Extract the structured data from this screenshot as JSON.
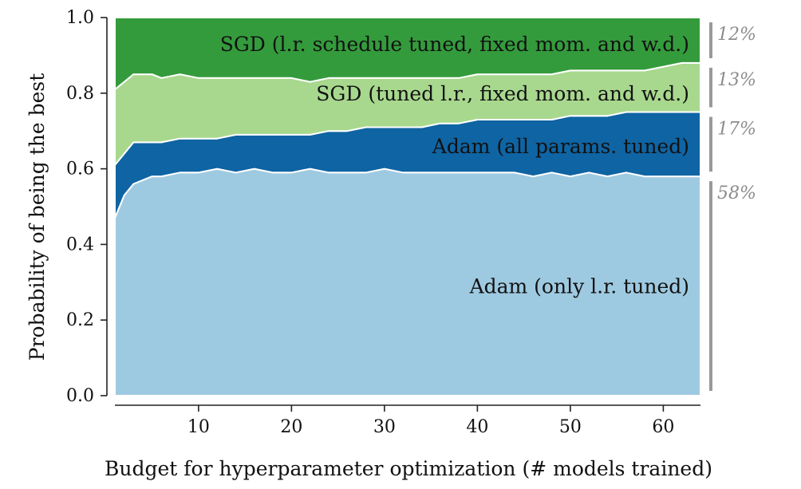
{
  "chart_data": {
    "type": "area",
    "stacked": true,
    "xlabel": "Budget for hyperparameter optimization (# models trained)",
    "ylabel": "Probability of being the best",
    "xlim": [
      1,
      64
    ],
    "ylim": [
      0,
      1
    ],
    "x_ticks": [
      10,
      20,
      30,
      40,
      50,
      60
    ],
    "y_ticks": [
      "0.0",
      "0.2",
      "0.4",
      "0.6",
      "0.8",
      "1.0"
    ],
    "grid": false,
    "x": [
      1,
      2,
      3,
      4,
      5,
      6,
      8,
      10,
      12,
      14,
      16,
      18,
      20,
      22,
      24,
      26,
      28,
      30,
      32,
      34,
      36,
      38,
      40,
      42,
      44,
      46,
      48,
      50,
      52,
      54,
      56,
      58,
      60,
      62,
      64
    ],
    "series": [
      {
        "name": "Adam (only l.r. tuned)",
        "color": "#9ecae1",
        "share_label": "58%",
        "values": [
          0.47,
          0.53,
          0.56,
          0.57,
          0.58,
          0.58,
          0.59,
          0.59,
          0.6,
          0.59,
          0.6,
          0.59,
          0.59,
          0.6,
          0.59,
          0.59,
          0.59,
          0.6,
          0.59,
          0.59,
          0.59,
          0.59,
          0.59,
          0.59,
          0.59,
          0.58,
          0.59,
          0.58,
          0.59,
          0.58,
          0.59,
          0.58,
          0.58,
          0.58,
          0.58
        ]
      },
      {
        "name": "Adam (all params. tuned)",
        "color": "#0f64a3",
        "share_label": "17%",
        "values": [
          0.14,
          0.11,
          0.11,
          0.1,
          0.09,
          0.09,
          0.09,
          0.09,
          0.08,
          0.1,
          0.09,
          0.1,
          0.1,
          0.09,
          0.11,
          0.11,
          0.12,
          0.11,
          0.12,
          0.12,
          0.13,
          0.13,
          0.14,
          0.14,
          0.14,
          0.15,
          0.14,
          0.16,
          0.15,
          0.16,
          0.16,
          0.17,
          0.17,
          0.17,
          0.17
        ]
      },
      {
        "name": "SGD (tuned l.r., fixed mom. and w.d.)",
        "color": "#a8d88e",
        "share_label": "13%",
        "values": [
          0.2,
          0.19,
          0.18,
          0.18,
          0.18,
          0.17,
          0.17,
          0.16,
          0.16,
          0.15,
          0.15,
          0.15,
          0.15,
          0.14,
          0.14,
          0.14,
          0.13,
          0.13,
          0.13,
          0.13,
          0.12,
          0.12,
          0.12,
          0.12,
          0.12,
          0.12,
          0.12,
          0.12,
          0.12,
          0.12,
          0.11,
          0.11,
          0.12,
          0.13,
          0.13
        ]
      },
      {
        "name": "SGD (l.r. schedule tuned, fixed mom. and w.d.)",
        "color": "#349b3c",
        "share_label": "12%",
        "values": [
          0.19,
          0.17,
          0.15,
          0.15,
          0.15,
          0.16,
          0.15,
          0.16,
          0.16,
          0.16,
          0.16,
          0.16,
          0.16,
          0.17,
          0.16,
          0.16,
          0.16,
          0.16,
          0.16,
          0.16,
          0.16,
          0.16,
          0.15,
          0.15,
          0.15,
          0.15,
          0.15,
          0.14,
          0.14,
          0.14,
          0.14,
          0.14,
          0.13,
          0.12,
          0.12
        ]
      }
    ],
    "share_bar_color": "#999999"
  }
}
